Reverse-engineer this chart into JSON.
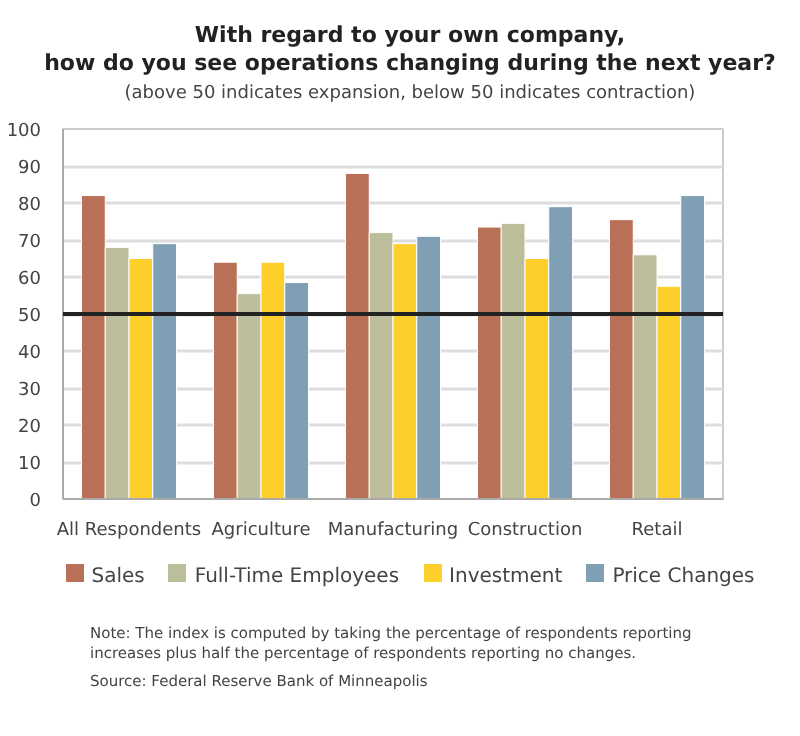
{
  "chart_data": {
    "type": "bar",
    "title": "With regard to your own company,\nhow do you see operations changing during the next year?",
    "subtitle": "(above 50 indicates expansion, below 50 indicates contraction)",
    "categories": [
      "All Respondents",
      "Agriculture",
      "Manufacturing",
      "Construction",
      "Retail"
    ],
    "series": [
      {
        "name": "Sales",
        "color": "#b87156",
        "values": [
          82,
          64,
          88,
          73.5,
          75.5
        ]
      },
      {
        "name": "Full-Time Employees",
        "color": "#bcbd9a",
        "values": [
          68,
          55.5,
          72,
          74.5,
          66
        ]
      },
      {
        "name": "Investment",
        "color": "#fccf2a",
        "values": [
          65,
          64,
          69,
          65,
          57.5
        ]
      },
      {
        "name": "Price Changes",
        "color": "#7f9fb4",
        "values": [
          69,
          58.5,
          71,
          79,
          82
        ]
      }
    ],
    "ylim": [
      0,
      100
    ],
    "yticks": [
      0,
      10,
      20,
      30,
      40,
      50,
      60,
      70,
      80,
      90,
      100
    ],
    "grid": "y",
    "legend": "bottom",
    "ref_lines": [
      {
        "axis": "y",
        "value": 50,
        "color": "#222222"
      }
    ],
    "annotations": [
      "Note: The index is computed by taking the percentage of respondents reporting\nincreases plus half the percentage of respondents reporting no changes.",
      "Source: Federal Reserve Bank of Minneapolis"
    ]
  }
}
